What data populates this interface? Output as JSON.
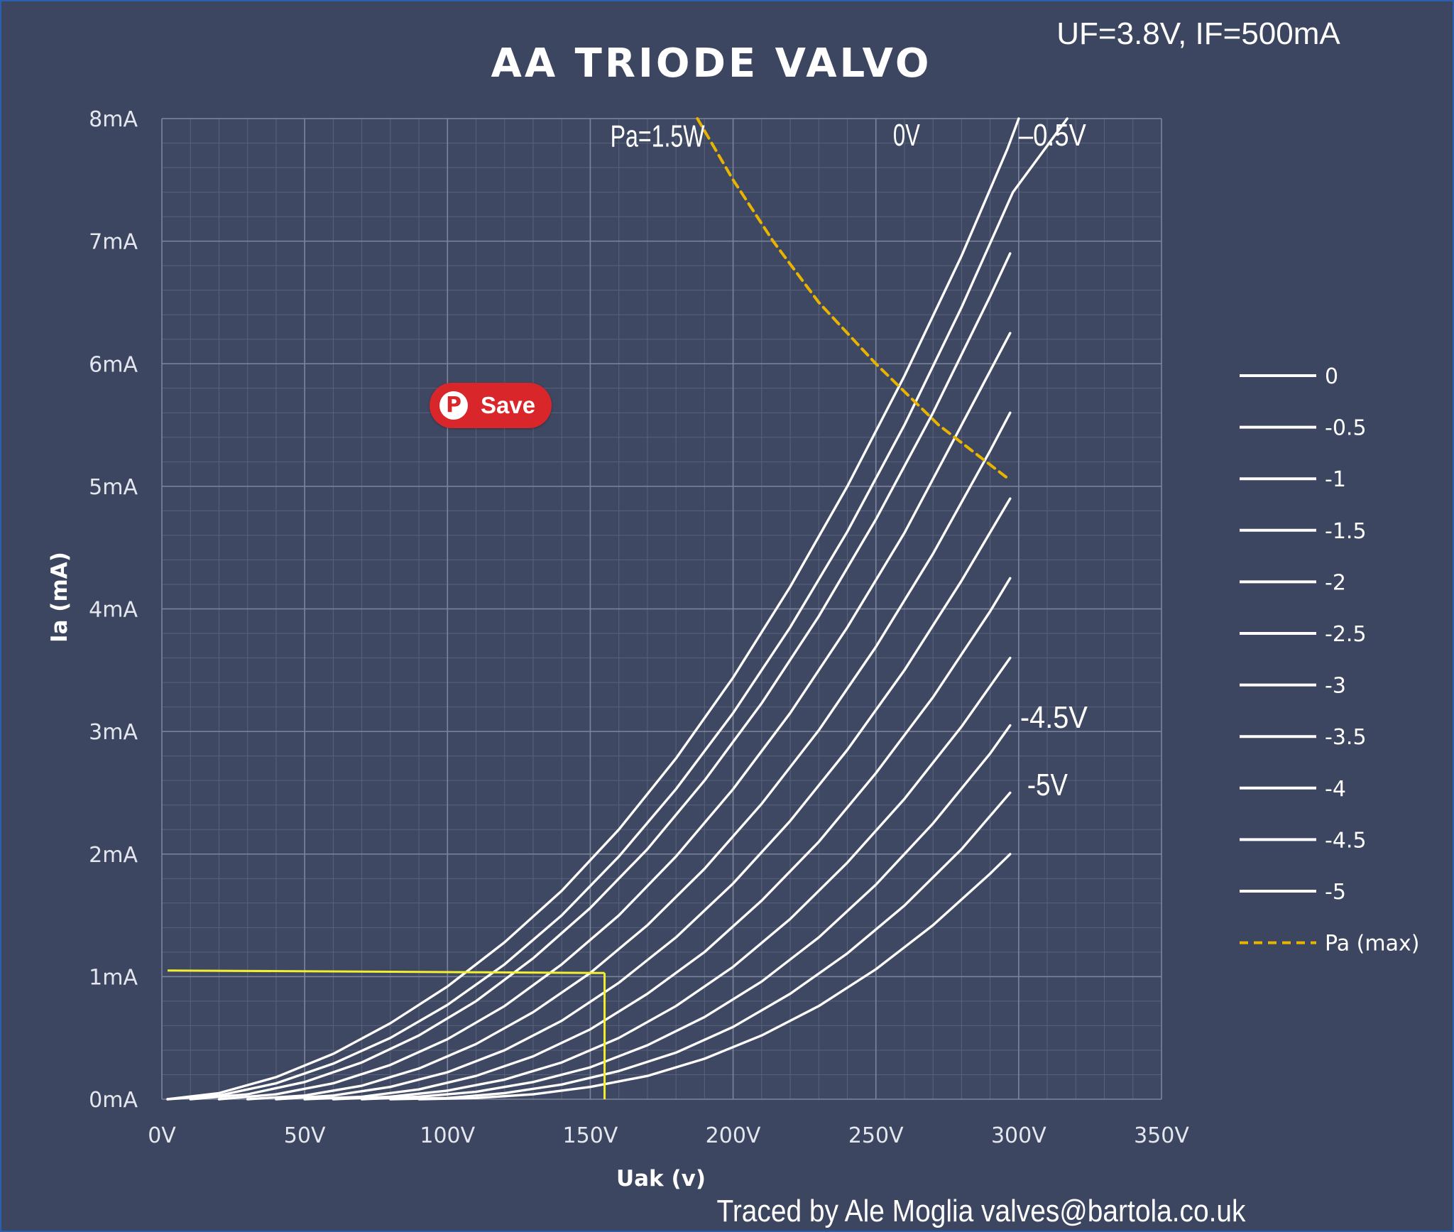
{
  "chart_data": {
    "type": "line",
    "title": "AA TRIODE VALVO",
    "subtitle": "UF=3.8V, IF=500mA",
    "xlabel": "Uak (v)",
    "ylabel": "Ia (mA)",
    "xlim": [
      0,
      350
    ],
    "ylim": [
      0,
      8
    ],
    "x_ticks": [
      0,
      50,
      100,
      150,
      200,
      250,
      300,
      350
    ],
    "x_tick_labels": [
      "0V",
      "50V",
      "100V",
      "150V",
      "200V",
      "250V",
      "300V",
      "350V"
    ],
    "y_ticks": [
      0,
      1,
      2,
      3,
      4,
      5,
      6,
      7,
      8
    ],
    "y_tick_labels": [
      "0mA",
      "1mA",
      "2mA",
      "3mA",
      "4mA",
      "5mA",
      "6mA",
      "7mA",
      "8mA"
    ],
    "grid": true,
    "legend_position": "right",
    "series": [
      {
        "name": "0",
        "points": [
          [
            2,
            0
          ],
          [
            20,
            0.05
          ],
          [
            40,
            0.18
          ],
          [
            60,
            0.37
          ],
          [
            80,
            0.62
          ],
          [
            100,
            0.92
          ],
          [
            120,
            1.28
          ],
          [
            140,
            1.7
          ],
          [
            160,
            2.2
          ],
          [
            180,
            2.78
          ],
          [
            200,
            3.44
          ],
          [
            220,
            4.18
          ],
          [
            240,
            5.0
          ],
          [
            260,
            5.9
          ],
          [
            280,
            6.88
          ],
          [
            296,
            7.75
          ],
          [
            300,
            8.0
          ]
        ]
      },
      {
        "name": "-0.5",
        "points": [
          [
            2,
            0
          ],
          [
            20,
            0.03
          ],
          [
            40,
            0.13
          ],
          [
            60,
            0.29
          ],
          [
            80,
            0.5
          ],
          [
            100,
            0.77
          ],
          [
            120,
            1.1
          ],
          [
            140,
            1.5
          ],
          [
            160,
            1.98
          ],
          [
            180,
            2.53
          ],
          [
            200,
            3.15
          ],
          [
            220,
            3.85
          ],
          [
            240,
            4.63
          ],
          [
            260,
            5.5
          ],
          [
            280,
            6.46
          ],
          [
            298,
            7.4
          ],
          [
            317,
            8.0
          ]
        ]
      },
      {
        "name": "-1",
        "points": [
          [
            10,
            0
          ],
          [
            30,
            0.04
          ],
          [
            50,
            0.14
          ],
          [
            70,
            0.3
          ],
          [
            90,
            0.52
          ],
          [
            110,
            0.8
          ],
          [
            130,
            1.15
          ],
          [
            150,
            1.56
          ],
          [
            170,
            2.04
          ],
          [
            190,
            2.6
          ],
          [
            210,
            3.23
          ],
          [
            230,
            3.94
          ],
          [
            250,
            4.73
          ],
          [
            270,
            5.6
          ],
          [
            290,
            6.55
          ],
          [
            297,
            6.9
          ]
        ]
      },
      {
        "name": "-1.5",
        "points": [
          [
            20,
            0
          ],
          [
            40,
            0.04
          ],
          [
            60,
            0.13
          ],
          [
            80,
            0.28
          ],
          [
            100,
            0.49
          ],
          [
            120,
            0.76
          ],
          [
            140,
            1.1
          ],
          [
            160,
            1.5
          ],
          [
            180,
            1.98
          ],
          [
            200,
            2.53
          ],
          [
            220,
            3.15
          ],
          [
            240,
            3.85
          ],
          [
            260,
            4.62
          ],
          [
            280,
            5.5
          ],
          [
            297,
            6.25
          ]
        ]
      },
      {
        "name": "-2",
        "points": [
          [
            30,
            0
          ],
          [
            50,
            0.03
          ],
          [
            70,
            0.11
          ],
          [
            90,
            0.25
          ],
          [
            110,
            0.45
          ],
          [
            130,
            0.71
          ],
          [
            150,
            1.03
          ],
          [
            170,
            1.42
          ],
          [
            190,
            1.88
          ],
          [
            210,
            2.41
          ],
          [
            230,
            3.01
          ],
          [
            250,
            3.69
          ],
          [
            270,
            4.45
          ],
          [
            290,
            5.29
          ],
          [
            297,
            5.6
          ]
        ]
      },
      {
        "name": "-2.5",
        "points": [
          [
            40,
            0
          ],
          [
            60,
            0.03
          ],
          [
            80,
            0.1
          ],
          [
            100,
            0.22
          ],
          [
            120,
            0.4
          ],
          [
            140,
            0.64
          ],
          [
            160,
            0.95
          ],
          [
            180,
            1.32
          ],
          [
            200,
            1.76
          ],
          [
            220,
            2.27
          ],
          [
            240,
            2.85
          ],
          [
            260,
            3.5
          ],
          [
            280,
            4.23
          ],
          [
            297,
            4.9
          ]
        ]
      },
      {
        "name": "-3",
        "points": [
          [
            50,
            0
          ],
          [
            70,
            0.02
          ],
          [
            90,
            0.08
          ],
          [
            110,
            0.19
          ],
          [
            130,
            0.35
          ],
          [
            150,
            0.57
          ],
          [
            170,
            0.86
          ],
          [
            190,
            1.2
          ],
          [
            210,
            1.62
          ],
          [
            230,
            2.1
          ],
          [
            250,
            2.66
          ],
          [
            270,
            3.28
          ],
          [
            290,
            3.98
          ],
          [
            297,
            4.25
          ]
        ]
      },
      {
        "name": "-3.5",
        "points": [
          [
            60,
            0
          ],
          [
            80,
            0.02
          ],
          [
            100,
            0.07
          ],
          [
            120,
            0.16
          ],
          [
            140,
            0.3
          ],
          [
            160,
            0.5
          ],
          [
            180,
            0.76
          ],
          [
            200,
            1.08
          ],
          [
            220,
            1.47
          ],
          [
            240,
            1.93
          ],
          [
            260,
            2.45
          ],
          [
            280,
            3.04
          ],
          [
            297,
            3.6
          ]
        ]
      },
      {
        "name": "-4",
        "points": [
          [
            70,
            0
          ],
          [
            90,
            0.02
          ],
          [
            110,
            0.06
          ],
          [
            130,
            0.14
          ],
          [
            150,
            0.26
          ],
          [
            170,
            0.44
          ],
          [
            190,
            0.67
          ],
          [
            210,
            0.96
          ],
          [
            230,
            1.32
          ],
          [
            250,
            1.75
          ],
          [
            270,
            2.25
          ],
          [
            290,
            2.82
          ],
          [
            297,
            3.05
          ]
        ]
      },
      {
        "name": "-4.5",
        "points": [
          [
            80,
            0
          ],
          [
            100,
            0.01
          ],
          [
            120,
            0.05
          ],
          [
            140,
            0.12
          ],
          [
            160,
            0.23
          ],
          [
            180,
            0.38
          ],
          [
            200,
            0.59
          ],
          [
            220,
            0.86
          ],
          [
            240,
            1.19
          ],
          [
            260,
            1.58
          ],
          [
            280,
            2.04
          ],
          [
            297,
            2.5
          ]
        ]
      },
      {
        "name": "-5",
        "points": [
          [
            90,
            0
          ],
          [
            110,
            0.01
          ],
          [
            130,
            0.04
          ],
          [
            150,
            0.1
          ],
          [
            170,
            0.19
          ],
          [
            190,
            0.33
          ],
          [
            210,
            0.52
          ],
          [
            230,
            0.76
          ],
          [
            250,
            1.06
          ],
          [
            270,
            1.42
          ],
          [
            290,
            1.84
          ],
          [
            297,
            2.0
          ]
        ]
      },
      {
        "name": "Pa (max)",
        "style": "dashed",
        "color": "#e8b400",
        "points": [
          [
            187.5,
            8.0
          ],
          [
            200,
            7.5
          ],
          [
            214,
            7.0
          ],
          [
            230,
            6.5
          ],
          [
            250,
            6.0
          ],
          [
            272,
            5.5
          ],
          [
            297,
            5.05
          ]
        ]
      }
    ],
    "guide_lines": {
      "color": "#f2ee30",
      "horizontal": {
        "from": [
          2,
          1.05
        ],
        "to": [
          155,
          1.03
        ]
      },
      "vertical": {
        "x": 155,
        "from_y": 1.03,
        "to_y": 0
      }
    },
    "annotations": [
      {
        "text": "Pa=1.5W",
        "x": 157,
        "y": 7.77
      },
      {
        "text": "0V",
        "x": 256,
        "y": 7.78
      },
      {
        "text": "–0.5V",
        "x": 300,
        "y": 7.78
      },
      {
        "text": "-4.5V",
        "x": 300.5,
        "y": 3.03
      },
      {
        "text": "-5V",
        "x": 303,
        "y": 2.48
      }
    ],
    "credit": "Traced by Ale Moglia valves@bartola.co.uk"
  },
  "save_button": {
    "label": "Save",
    "icon": "pinterest-icon",
    "color": "#d9262a"
  },
  "colors": {
    "background": "#3d4660",
    "curve": "#ffffff",
    "grid": "#6a738c",
    "border": "#2a5fae"
  }
}
